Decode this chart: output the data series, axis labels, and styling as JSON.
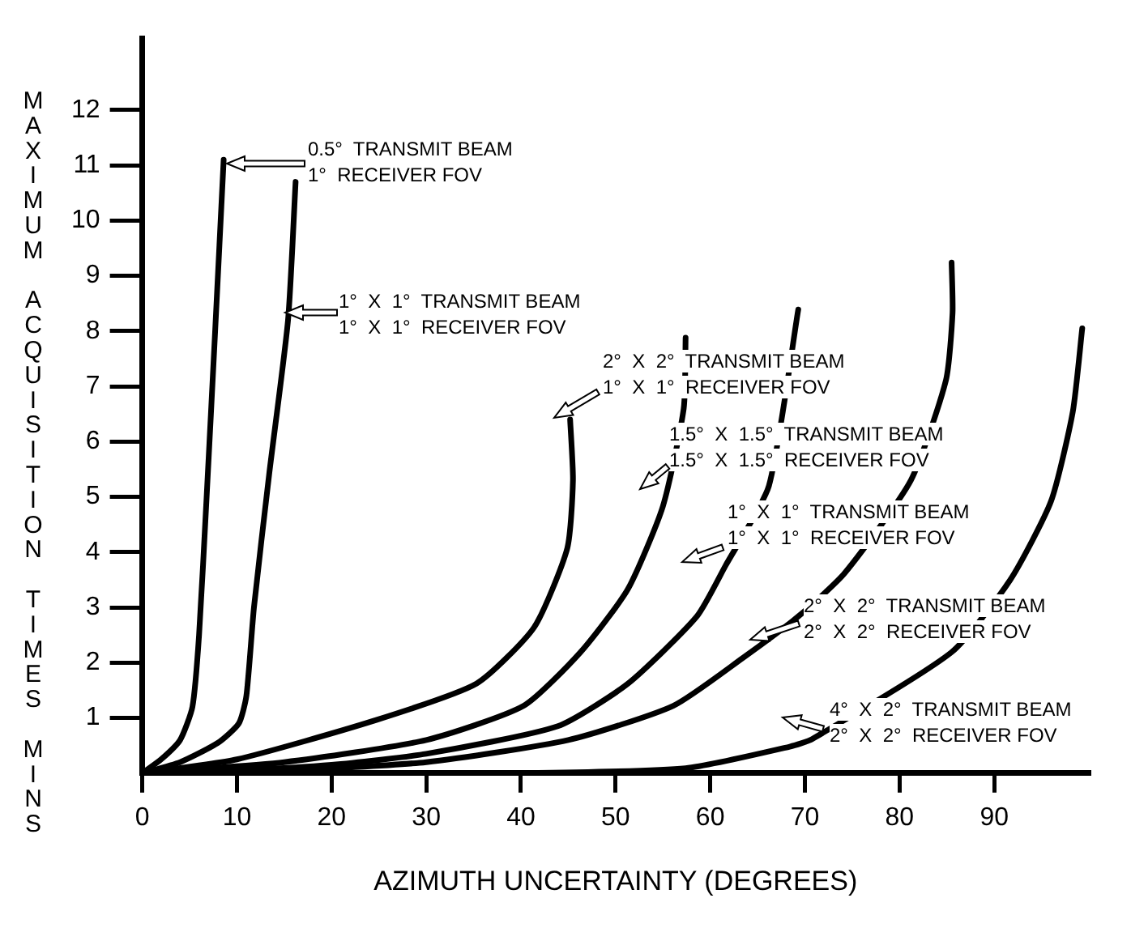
{
  "chart_data": {
    "type": "line",
    "xlabel": "AZIMUTH UNCERTAINTY (DEGREES)",
    "ylabel": "MAXIMUM ACQUISITION TIMES MINS",
    "xlim": [
      0,
      100
    ],
    "xticks": [
      0,
      10,
      20,
      30,
      40,
      50,
      60,
      70,
      80,
      90
    ],
    "ylim": [
      0,
      13.3
    ],
    "yticks": [
      1,
      2,
      3,
      4,
      5,
      6,
      7,
      8,
      9,
      10,
      11,
      12
    ],
    "grid": false,
    "legend": false,
    "marker": "none",
    "series": [
      {
        "color": "#000000",
        "x": [
          0,
          2,
          4,
          5.3,
          6,
          6.8,
          7.7,
          8.6
        ],
        "values": [
          0,
          0.25,
          0.6,
          1.2,
          2.5,
          5,
          8,
          11.1
        ]
      },
      {
        "color": "#000000",
        "x": [
          0,
          4,
          8,
          10.2,
          11,
          11.8,
          13.4,
          15.4,
          16.2
        ],
        "values": [
          0,
          0.2,
          0.55,
          0.9,
          1.4,
          3,
          5.4,
          8.2,
          10.7
        ]
      },
      {
        "color": "#000000",
        "x": [
          0,
          10,
          24.3,
          35.3,
          41.4,
          44.9,
          45.5,
          45.2
        ],
        "values": [
          0,
          0.25,
          0.94,
          1.62,
          2.64,
          4.07,
          5.3,
          6.4
        ]
      },
      {
        "color": "#000000",
        "x": [
          0,
          15,
          30,
          40.3,
          46.3,
          51.3,
          55,
          57.2,
          57.4
        ],
        "values": [
          0,
          0.2,
          0.6,
          1.22,
          2.19,
          3.33,
          4.83,
          6.6,
          7.88
        ]
      },
      {
        "color": "#000000",
        "x": [
          0,
          10,
          20,
          30,
          43.9,
          51.3,
          58.6,
          61.6,
          66.2,
          69.3
        ],
        "values": [
          0,
          0.05,
          0.15,
          0.35,
          0.85,
          1.62,
          2.84,
          3.75,
          5.2,
          8.39
        ]
      },
      {
        "color": "#000000",
        "x": [
          0,
          15,
          30,
          45,
          56.1,
          63.4,
          69.4,
          74.2,
          81.2,
          84.9,
          85.6,
          85.5
        ],
        "values": [
          0,
          0.05,
          0.2,
          0.6,
          1.22,
          2.08,
          2.85,
          3.62,
          5.3,
          7.11,
          8.33,
          9.24
        ]
      },
      {
        "color": "#000000",
        "x": [
          0,
          20,
          40,
          57.4,
          68.4,
          70.8,
          85.5,
          91.7,
          96,
          98.3,
          99.3
        ],
        "values": [
          0,
          0,
          0,
          0.09,
          0.48,
          0.62,
          2.19,
          3.5,
          4.92,
          6.54,
          8.05
        ]
      }
    ],
    "annotations": [
      "0.5°  TRANSMIT BEAM\n1°  RECEIVER FOV",
      "1°  X  1°  TRANSMIT BEAM\n1°  X  1°  RECEIVER FOV",
      "2°  X  2°  TRANSMIT BEAM\n1°  X  1°  RECEIVER FOV",
      "1.5°  X  1.5°  TRANSMIT BEAM\n1.5°  X  1.5°  RECEIVER FOV",
      "1°  X  1°  TRANSMIT BEAM\n1°  X  1°  RECEIVER FOV",
      "2°  X  2°  TRANSMIT BEAM\n2°  X  2°  RECEIVER FOV",
      "4°  X  2°  TRANSMIT BEAM\n2°  X  2°  RECEIVER FOV"
    ]
  }
}
